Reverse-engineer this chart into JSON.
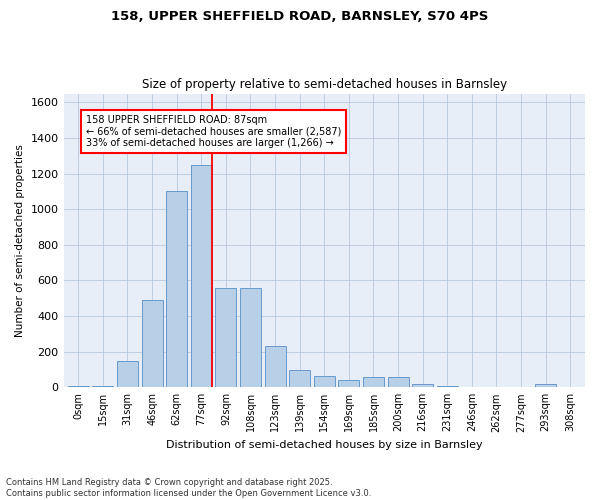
{
  "title_line1": "158, UPPER SHEFFIELD ROAD, BARNSLEY, S70 4PS",
  "title_line2": "Size of property relative to semi-detached houses in Barnsley",
  "xlabel": "Distribution of semi-detached houses by size in Barnsley",
  "ylabel": "Number of semi-detached properties",
  "categories": [
    "0sqm",
    "15sqm",
    "31sqm",
    "46sqm",
    "62sqm",
    "77sqm",
    "92sqm",
    "108sqm",
    "123sqm",
    "139sqm",
    "154sqm",
    "169sqm",
    "185sqm",
    "200sqm",
    "216sqm",
    "231sqm",
    "246sqm",
    "262sqm",
    "277sqm",
    "293sqm",
    "308sqm"
  ],
  "values": [
    5,
    5,
    150,
    490,
    1100,
    1250,
    560,
    560,
    230,
    100,
    65,
    40,
    60,
    60,
    20,
    5,
    0,
    0,
    0,
    20,
    0
  ],
  "bar_color": "#b8cfe8",
  "bar_edge_color": "#6699cc",
  "property_bar_index": 5,
  "annotation_title": "158 UPPER SHEFFIELD ROAD: 87sqm",
  "annotation_line2": "← 66% of semi-detached houses are smaller (2,587)",
  "annotation_line3": "33% of semi-detached houses are larger (1,266) →",
  "ylim": [
    0,
    1650
  ],
  "yticks": [
    0,
    200,
    400,
    600,
    800,
    1000,
    1200,
    1400,
    1600
  ],
  "footer_line1": "Contains HM Land Registry data © Crown copyright and database right 2025.",
  "footer_line2": "Contains public sector information licensed under the Open Government Licence v3.0.",
  "bg_color": "#e8eef8"
}
